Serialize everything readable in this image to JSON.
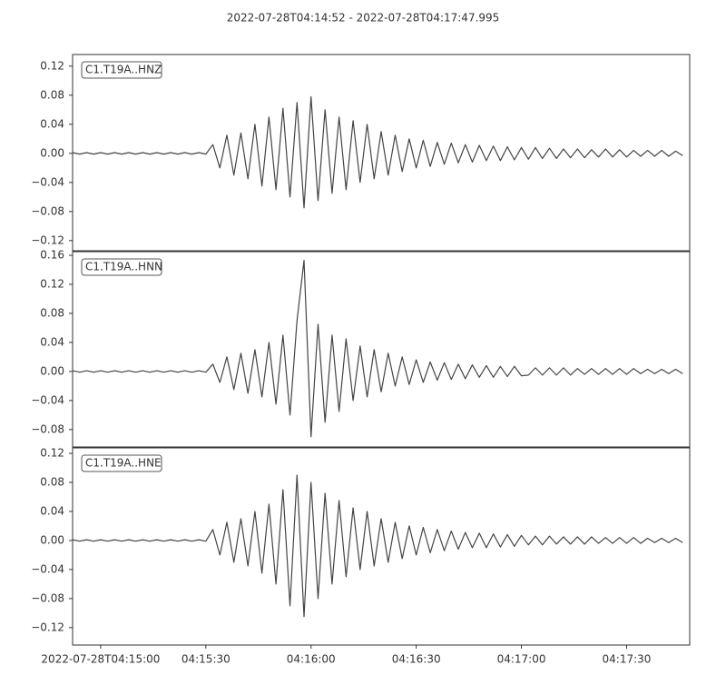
{
  "chart_data": [
    {
      "type": "line",
      "title": "2022-07-28T04:14:52  -  2022-07-28T04:17:47.995",
      "x": [
        "04:14:52",
        "04:14:54",
        "04:14:56",
        "04:14:58",
        "04:15:00",
        "04:15:02",
        "04:15:04",
        "04:15:06",
        "04:15:08",
        "04:15:10",
        "04:15:12",
        "04:15:14",
        "04:15:16",
        "04:15:18",
        "04:15:20",
        "04:15:22",
        "04:15:24",
        "04:15:26",
        "04:15:28",
        "04:15:30",
        "04:15:32",
        "04:15:34",
        "04:15:36",
        "04:15:38",
        "04:15:40",
        "04:15:42",
        "04:15:44",
        "04:15:46",
        "04:15:48",
        "04:15:50",
        "04:15:52",
        "04:15:54",
        "04:15:56",
        "04:15:58",
        "04:16:00",
        "04:16:02",
        "04:16:04",
        "04:16:06",
        "04:16:08",
        "04:16:10",
        "04:16:12",
        "04:16:14",
        "04:16:16",
        "04:16:18",
        "04:16:20",
        "04:16:22",
        "04:16:24",
        "04:16:26",
        "04:16:28",
        "04:16:30",
        "04:16:32",
        "04:16:34",
        "04:16:36",
        "04:16:38",
        "04:16:40",
        "04:16:42",
        "04:16:44",
        "04:16:46",
        "04:16:48",
        "04:16:50",
        "04:16:52",
        "04:16:54",
        "04:16:56",
        "04:16:58",
        "04:17:00",
        "04:17:02",
        "04:17:04",
        "04:17:06",
        "04:17:08",
        "04:17:10",
        "04:17:12",
        "04:17:14",
        "04:17:16",
        "04:17:18",
        "04:17:20",
        "04:17:22",
        "04:17:24",
        "04:17:26",
        "04:17:28",
        "04:17:30",
        "04:17:32",
        "04:17:34",
        "04:17:36",
        "04:17:38",
        "04:17:40",
        "04:17:42",
        "04:17:44",
        "04:17:46"
      ],
      "series": [
        {
          "name": "C1.T19A..HNZ",
          "color": "#444444",
          "values": [
            0.001,
            -0.001,
            0.001,
            -0.001,
            0.001,
            -0.001,
            0.001,
            -0.001,
            0.001,
            -0.001,
            0.001,
            -0.001,
            0.001,
            -0.001,
            0.001,
            -0.001,
            0.001,
            -0.001,
            0.001,
            -0.001,
            0.012,
            -0.02,
            0.025,
            -0.03,
            0.028,
            -0.035,
            0.04,
            -0.045,
            0.05,
            -0.05,
            0.062,
            -0.06,
            0.07,
            -0.075,
            0.078,
            -0.065,
            0.06,
            -0.055,
            0.05,
            -0.05,
            0.045,
            -0.04,
            0.04,
            -0.035,
            0.03,
            -0.03,
            0.025,
            -0.025,
            0.02,
            -0.02,
            0.018,
            -0.018,
            0.015,
            -0.015,
            0.014,
            -0.013,
            0.012,
            -0.012,
            0.011,
            -0.01,
            0.01,
            -0.01,
            0.009,
            -0.009,
            0.008,
            -0.008,
            0.008,
            -0.007,
            0.007,
            -0.007,
            0.006,
            -0.006,
            0.006,
            -0.006,
            0.005,
            -0.005,
            0.006,
            -0.005,
            0.005,
            -0.005,
            0.004,
            -0.004,
            0.004,
            -0.004,
            0.004,
            -0.004,
            0.003,
            -0.003
          ]
        }
      ],
      "xlim": [
        "04:14:52",
        "04:17:47.995"
      ],
      "ylim": [
        -0.134,
        0.136
      ],
      "yticks": [
        {
          "value": -0.12,
          "label": "−0.12"
        },
        {
          "value": -0.08,
          "label": "−0.08"
        },
        {
          "value": -0.04,
          "label": "−0.04"
        },
        {
          "value": 0,
          "label": "0.00"
        },
        {
          "value": 0.04,
          "label": "0.04"
        },
        {
          "value": 0.08,
          "label": "0.08"
        },
        {
          "value": 0.12,
          "label": "0.12"
        }
      ]
    },
    {
      "type": "line",
      "x": [
        "04:14:52",
        "04:14:54",
        "04:14:56",
        "04:14:58",
        "04:15:00",
        "04:15:02",
        "04:15:04",
        "04:15:06",
        "04:15:08",
        "04:15:10",
        "04:15:12",
        "04:15:14",
        "04:15:16",
        "04:15:18",
        "04:15:20",
        "04:15:22",
        "04:15:24",
        "04:15:26",
        "04:15:28",
        "04:15:30",
        "04:15:32",
        "04:15:34",
        "04:15:36",
        "04:15:38",
        "04:15:40",
        "04:15:42",
        "04:15:44",
        "04:15:46",
        "04:15:48",
        "04:15:50",
        "04:15:52",
        "04:15:54",
        "04:15:56",
        "04:15:58",
        "04:16:00",
        "04:16:02",
        "04:16:04",
        "04:16:06",
        "04:16:08",
        "04:16:10",
        "04:16:12",
        "04:16:14",
        "04:16:16",
        "04:16:18",
        "04:16:20",
        "04:16:22",
        "04:16:24",
        "04:16:26",
        "04:16:28",
        "04:16:30",
        "04:16:32",
        "04:16:34",
        "04:16:36",
        "04:16:38",
        "04:16:40",
        "04:16:42",
        "04:16:44",
        "04:16:46",
        "04:16:48",
        "04:16:50",
        "04:16:52",
        "04:16:54",
        "04:16:56",
        "04:16:58",
        "04:17:00",
        "04:17:02",
        "04:17:04",
        "04:17:06",
        "04:17:08",
        "04:17:10",
        "04:17:12",
        "04:17:14",
        "04:17:16",
        "04:17:18",
        "04:17:20",
        "04:17:22",
        "04:17:24",
        "04:17:26",
        "04:17:28",
        "04:17:30",
        "04:17:32",
        "04:17:34",
        "04:17:36",
        "04:17:38",
        "04:17:40",
        "04:17:42",
        "04:17:44",
        "04:17:46"
      ],
      "series": [
        {
          "name": "C1.T19A..HNN",
          "color": "#444444",
          "values": [
            0.001,
            -0.001,
            0.001,
            -0.001,
            0.001,
            -0.001,
            0.001,
            -0.001,
            0.001,
            -0.001,
            0.001,
            -0.001,
            0.001,
            -0.001,
            0.001,
            -0.001,
            0.001,
            -0.001,
            0.001,
            -0.001,
            0.01,
            -0.015,
            0.02,
            -0.025,
            0.025,
            -0.03,
            0.03,
            -0.035,
            0.04,
            -0.045,
            0.05,
            -0.06,
            0.07,
            0.153,
            -0.09,
            0.065,
            -0.07,
            0.05,
            -0.055,
            0.045,
            -0.04,
            0.035,
            -0.035,
            0.03,
            -0.028,
            0.025,
            -0.02,
            0.02,
            -0.018,
            0.016,
            -0.015,
            0.013,
            -0.012,
            0.012,
            -0.011,
            0.01,
            -0.01,
            0.009,
            -0.008,
            0.008,
            -0.008,
            0.007,
            -0.007,
            0.007,
            -0.006,
            -0.005,
            0.005,
            -0.005,
            0.005,
            -0.005,
            0.005,
            -0.005,
            0.004,
            -0.004,
            0.004,
            -0.004,
            0.004,
            -0.004,
            0.004,
            -0.004,
            0.004,
            -0.003,
            0.003,
            -0.003,
            0.003,
            -0.003,
            0.003,
            -0.003
          ]
        }
      ],
      "xlim": [
        "04:14:52",
        "04:17:47.995"
      ],
      "ylim": [
        -0.104,
        0.165
      ],
      "yticks": [
        {
          "value": -0.08,
          "label": "−0.08"
        },
        {
          "value": -0.04,
          "label": "−0.04"
        },
        {
          "value": 0,
          "label": "0.00"
        },
        {
          "value": 0.04,
          "label": "0.04"
        },
        {
          "value": 0.08,
          "label": "0.08"
        },
        {
          "value": 0.12,
          "label": "0.12"
        },
        {
          "value": 0.16,
          "label": "0.16"
        }
      ]
    },
    {
      "type": "line",
      "x": [
        "04:14:52",
        "04:14:54",
        "04:14:56",
        "04:14:58",
        "04:15:00",
        "04:15:02",
        "04:15:04",
        "04:15:06",
        "04:15:08",
        "04:15:10",
        "04:15:12",
        "04:15:14",
        "04:15:16",
        "04:15:18",
        "04:15:20",
        "04:15:22",
        "04:15:24",
        "04:15:26",
        "04:15:28",
        "04:15:30",
        "04:15:32",
        "04:15:34",
        "04:15:36",
        "04:15:38",
        "04:15:40",
        "04:15:42",
        "04:15:44",
        "04:15:46",
        "04:15:48",
        "04:15:50",
        "04:15:52",
        "04:15:54",
        "04:15:56",
        "04:15:58",
        "04:16:00",
        "04:16:02",
        "04:16:04",
        "04:16:06",
        "04:16:08",
        "04:16:10",
        "04:16:12",
        "04:16:14",
        "04:16:16",
        "04:16:18",
        "04:16:20",
        "04:16:22",
        "04:16:24",
        "04:16:26",
        "04:16:28",
        "04:16:30",
        "04:16:32",
        "04:16:34",
        "04:16:36",
        "04:16:38",
        "04:16:40",
        "04:16:42",
        "04:16:44",
        "04:16:46",
        "04:16:48",
        "04:16:50",
        "04:16:52",
        "04:16:54",
        "04:16:56",
        "04:16:58",
        "04:17:00",
        "04:17:02",
        "04:17:04",
        "04:17:06",
        "04:17:08",
        "04:17:10",
        "04:17:12",
        "04:17:14",
        "04:17:16",
        "04:17:18",
        "04:17:20",
        "04:17:22",
        "04:17:24",
        "04:17:26",
        "04:17:28",
        "04:17:30",
        "04:17:32",
        "04:17:34",
        "04:17:36",
        "04:17:38",
        "04:17:40",
        "04:17:42",
        "04:17:44",
        "04:17:46"
      ],
      "series": [
        {
          "name": "C1.T19A..HNE",
          "color": "#444444",
          "values": [
            0.001,
            -0.001,
            0.001,
            -0.001,
            0.001,
            -0.001,
            0.001,
            -0.001,
            0.001,
            -0.001,
            0.001,
            -0.001,
            0.001,
            -0.001,
            0.001,
            -0.001,
            0.001,
            -0.001,
            0.001,
            -0.001,
            0.015,
            -0.02,
            0.025,
            -0.03,
            0.03,
            -0.035,
            0.04,
            -0.045,
            0.05,
            -0.06,
            0.07,
            -0.09,
            0.09,
            -0.105,
            0.08,
            -0.08,
            0.065,
            -0.06,
            0.055,
            -0.05,
            0.045,
            -0.04,
            0.04,
            -0.035,
            0.03,
            -0.03,
            0.025,
            -0.025,
            0.02,
            -0.02,
            0.018,
            -0.017,
            0.015,
            -0.014,
            0.013,
            -0.012,
            0.011,
            -0.01,
            0.01,
            -0.01,
            0.009,
            -0.009,
            0.008,
            -0.008,
            0.007,
            -0.006,
            0.006,
            -0.006,
            0.006,
            -0.005,
            0.005,
            -0.005,
            0.005,
            -0.005,
            0.005,
            -0.004,
            0.004,
            -0.004,
            0.004,
            -0.004,
            0.004,
            -0.004,
            0.003,
            -0.003,
            0.003,
            -0.003,
            0.003,
            -0.003
          ]
        }
      ],
      "xlim": [
        "04:14:52",
        "04:17:47.995"
      ],
      "ylim": [
        -0.144,
        0.1275
      ],
      "yticks": [
        {
          "value": -0.12,
          "label": "−0.12"
        },
        {
          "value": -0.08,
          "label": "−0.08"
        },
        {
          "value": -0.04,
          "label": "−0.04"
        },
        {
          "value": 0,
          "label": "0.00"
        },
        {
          "value": 0.04,
          "label": "0.04"
        },
        {
          "value": 0.08,
          "label": "0.08"
        },
        {
          "value": 0.12,
          "label": "0.12"
        }
      ],
      "xticks": [
        {
          "value": "04:15:00",
          "label": "2022-07-28T04:15:00"
        },
        "04:15:30",
        "04:16:00",
        "04:16:30",
        "04:17:00",
        "04:17:30"
      ]
    }
  ]
}
